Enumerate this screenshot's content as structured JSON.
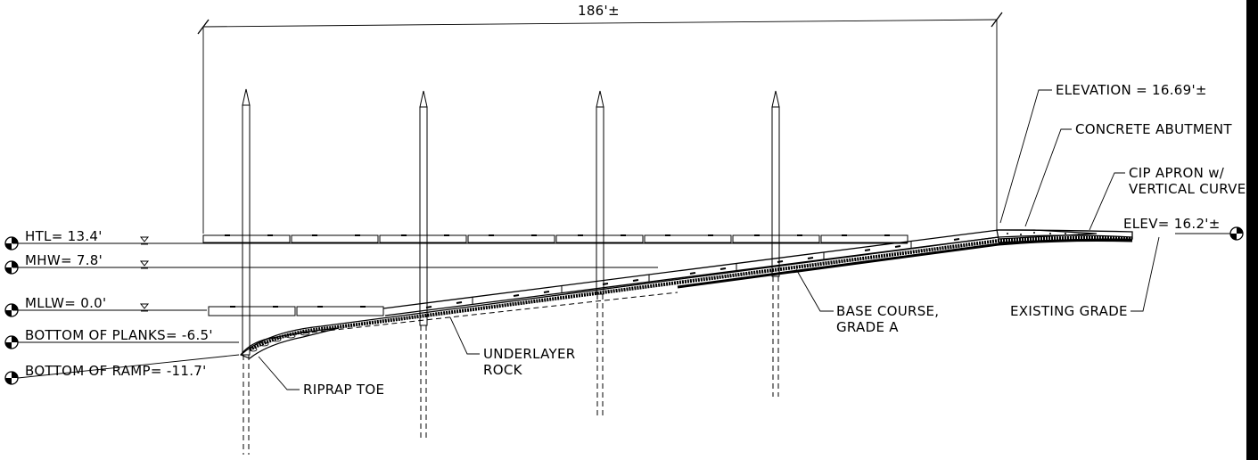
{
  "dimension": {
    "overall_length": "186'±"
  },
  "levels": {
    "htl": "HTL= 13.4'",
    "mhw": "MHW= 7.8'",
    "mllw": "MLLW= 0.0'",
    "bottom_planks": "BOTTOM OF PLANKS= -6.5'",
    "bottom_ramp": "BOTTOM OF RAMP= -11.7'"
  },
  "callouts": {
    "elevation": "ELEVATION = 16.69'±",
    "abutment": "CONCRETE ABUTMENT",
    "apron_line1": "CIP APRON w/",
    "apron_line2": "VERTICAL CURVE",
    "elev_right": "ELEV= 16.2'±",
    "existing_grade": "EXISTING GRADE",
    "base_course_line1": "BASE COURSE,",
    "base_course_line2": "GRADE A",
    "underlayer_line1": "UNDERLAYER",
    "underlayer_line2": "ROCK",
    "riprap_toe": "RIPRAP TOE"
  },
  "colors": {
    "ink": "#000000",
    "paper": "#ffffff"
  }
}
